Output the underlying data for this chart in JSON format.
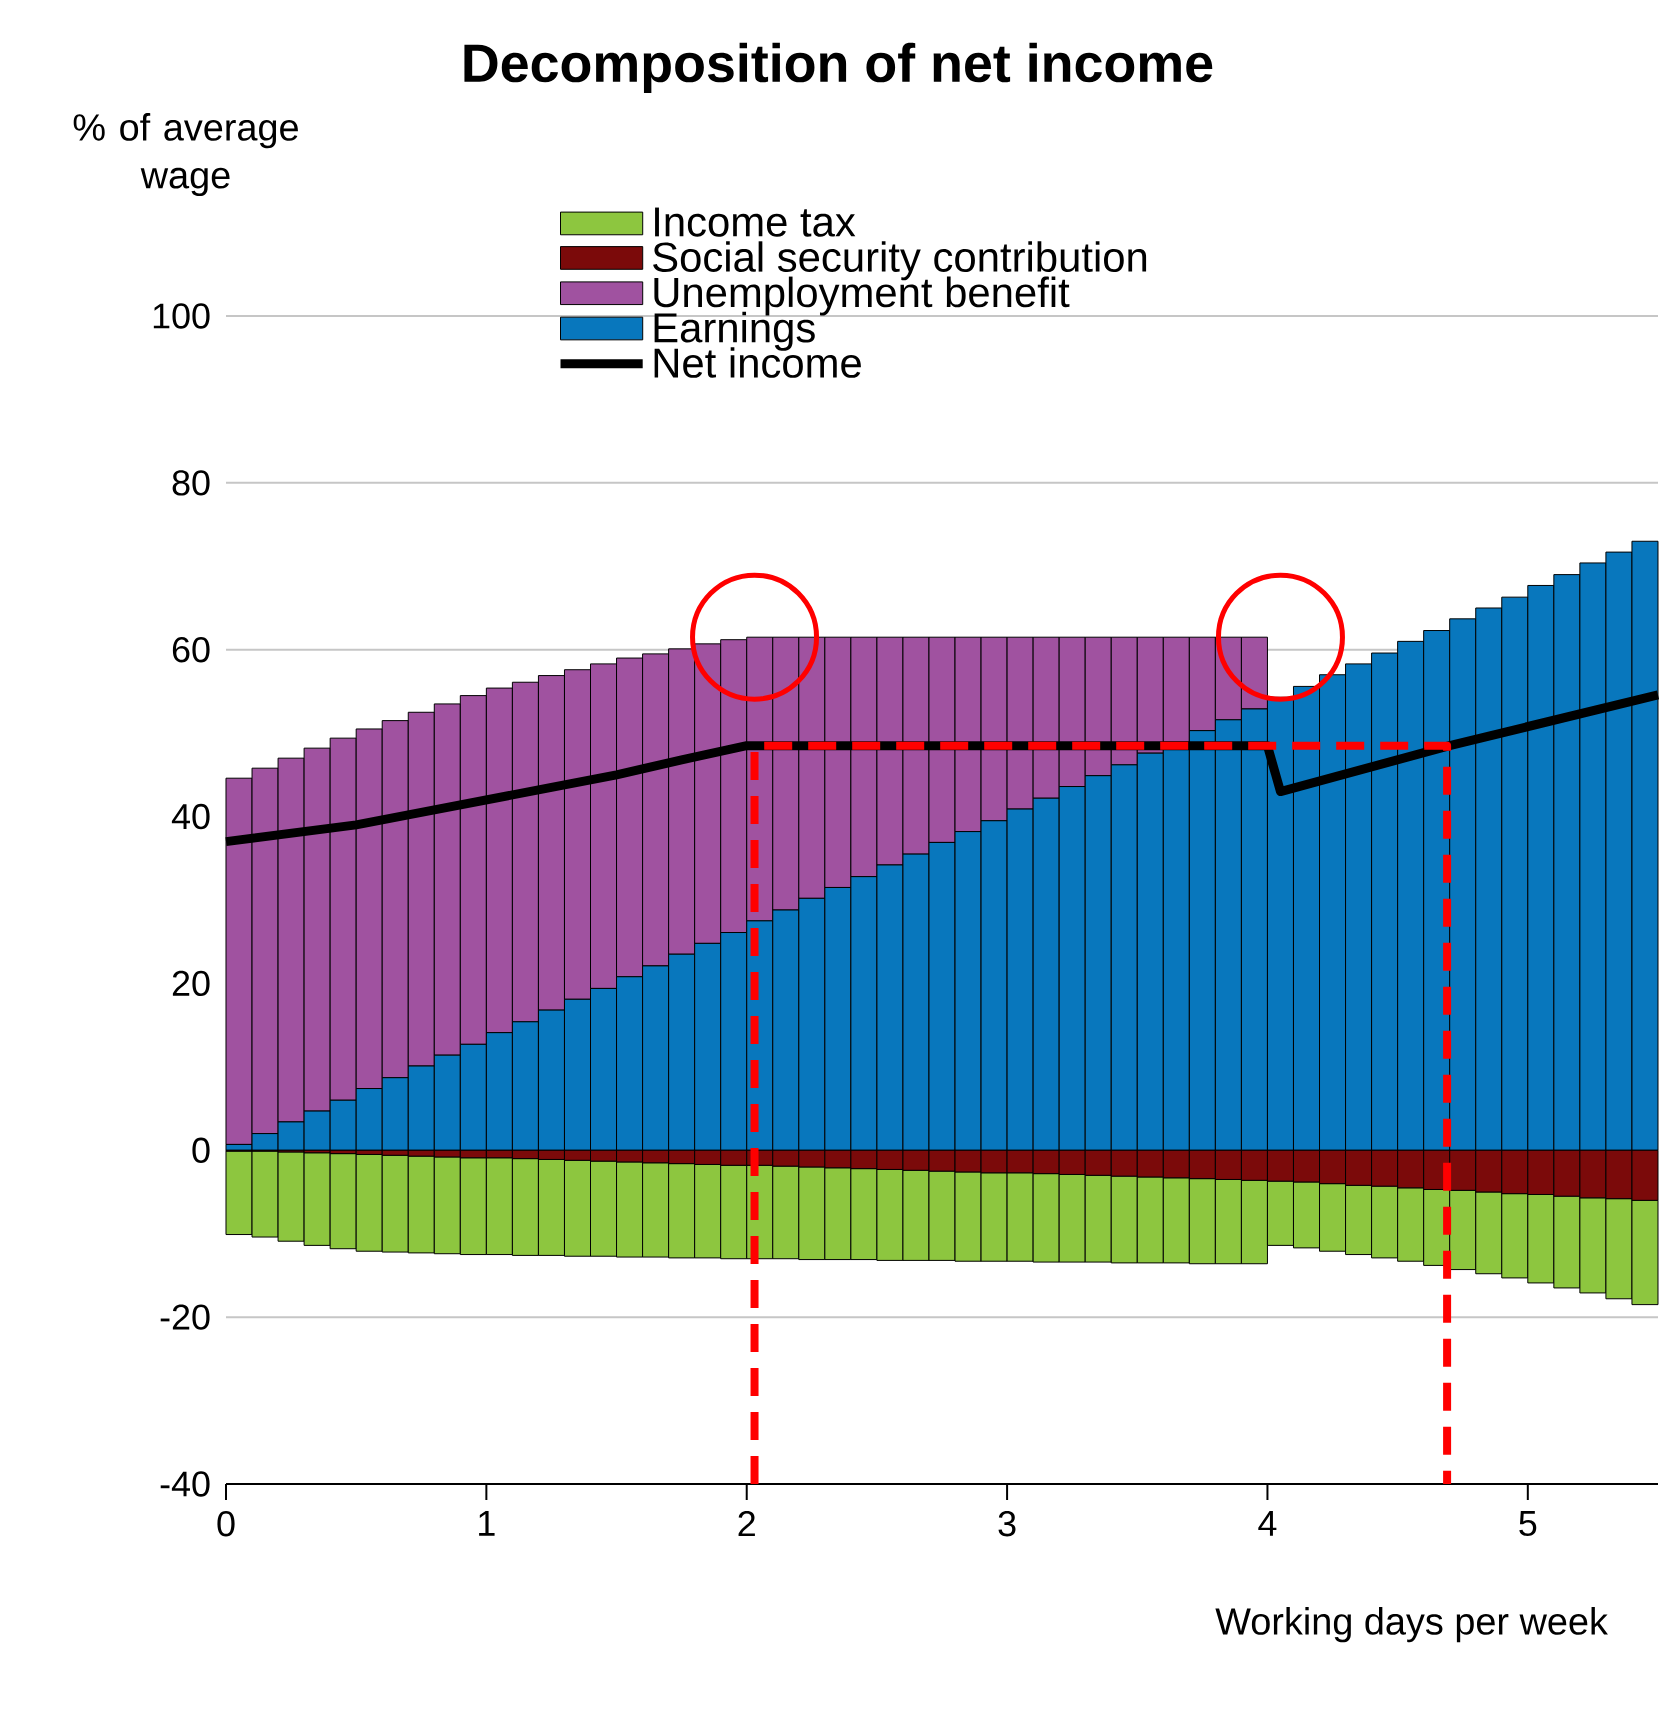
{
  "chart_data": {
    "type": "bar",
    "title": "Decomposition of net income",
    "xlabel": "Working days per week",
    "ylabel": "% of average wage",
    "stacked": true,
    "x": [
      0.05,
      0.15,
      0.25,
      0.35,
      0.45,
      0.55,
      0.65,
      0.75,
      0.85,
      0.95,
      1.05,
      1.15,
      1.25,
      1.35,
      1.45,
      1.55,
      1.65,
      1.75,
      1.85,
      1.95,
      2.05,
      2.15,
      2.25,
      2.35,
      2.45,
      2.55,
      2.65,
      2.75,
      2.85,
      2.95,
      3.05,
      3.15,
      3.25,
      3.35,
      3.45,
      3.55,
      3.65,
      3.75,
      3.85,
      3.95,
      4.05,
      4.15,
      4.25,
      4.35,
      4.45,
      4.55,
      4.65,
      4.75,
      4.85,
      4.95,
      5.05,
      5.15,
      5.25,
      5.35,
      5.45
    ],
    "series": [
      {
        "name": "Earnings",
        "color": "#0877bd",
        "values": [
          0.7,
          2.0,
          3.4,
          4.7,
          6.0,
          7.4,
          8.7,
          10.1,
          11.4,
          12.7,
          14.1,
          15.4,
          16.8,
          18.1,
          19.4,
          20.8,
          22.1,
          23.5,
          24.8,
          26.1,
          27.5,
          28.8,
          30.2,
          31.5,
          32.8,
          34.2,
          35.5,
          36.9,
          38.2,
          39.5,
          40.9,
          42.2,
          43.6,
          44.9,
          46.2,
          47.6,
          48.9,
          50.3,
          51.6,
          52.9,
          54.3,
          55.6,
          57.0,
          58.3,
          59.6,
          61.0,
          62.3,
          63.7,
          65.0,
          66.3,
          67.7,
          69.0,
          70.4,
          71.7,
          73.0
        ]
      },
      {
        "name": "Unemployment benefit",
        "color": "#a052a0",
        "values": [
          43.9,
          43.8,
          43.6,
          43.5,
          43.4,
          43.1,
          42.8,
          42.4,
          42.1,
          41.8,
          41.3,
          40.7,
          40.1,
          39.5,
          38.9,
          38.2,
          37.4,
          36.6,
          35.9,
          35.1,
          34.0,
          32.7,
          31.3,
          30.0,
          28.7,
          27.3,
          26.0,
          24.6,
          23.3,
          22.0,
          20.6,
          19.3,
          17.9,
          16.6,
          15.3,
          13.9,
          12.6,
          11.2,
          9.9,
          8.6,
          0,
          0,
          0,
          0,
          0,
          0,
          0,
          0,
          0,
          0,
          0,
          0,
          0,
          0,
          0
        ]
      },
      {
        "name": "Social security contribution",
        "color": "#7b0a0a",
        "values": [
          -0.1,
          -0.1,
          -0.2,
          -0.3,
          -0.4,
          -0.5,
          -0.6,
          -0.7,
          -0.8,
          -0.9,
          -0.9,
          -1.0,
          -1.1,
          -1.2,
          -1.3,
          -1.4,
          -1.5,
          -1.6,
          -1.7,
          -1.8,
          -1.8,
          -1.9,
          -2.0,
          -2.1,
          -2.2,
          -2.3,
          -2.4,
          -2.5,
          -2.6,
          -2.7,
          -2.7,
          -2.8,
          -2.9,
          -3.0,
          -3.1,
          -3.2,
          -3.3,
          -3.4,
          -3.5,
          -3.6,
          -3.7,
          -3.8,
          -4.0,
          -4.2,
          -4.3,
          -4.5,
          -4.7,
          -4.8,
          -5.0,
          -5.2,
          -5.3,
          -5.5,
          -5.7,
          -5.8,
          -6.0
        ]
      },
      {
        "name": "Income tax",
        "color": "#8dc63f",
        "values": [
          -10.0,
          -10.3,
          -10.7,
          -11.1,
          -11.4,
          -11.6,
          -11.6,
          -11.6,
          -11.6,
          -11.6,
          -11.6,
          -11.6,
          -11.5,
          -11.5,
          -11.4,
          -11.4,
          -11.3,
          -11.3,
          -11.2,
          -11.2,
          -11.2,
          -11.1,
          -11.1,
          -11.0,
          -10.9,
          -10.9,
          -10.8,
          -10.7,
          -10.7,
          -10.6,
          -10.6,
          -10.6,
          -10.5,
          -10.4,
          -10.4,
          -10.3,
          -10.2,
          -10.2,
          -10.1,
          -10.0,
          -7.7,
          -7.9,
          -8.1,
          -8.3,
          -8.6,
          -8.8,
          -9.1,
          -9.5,
          -9.8,
          -10.1,
          -10.6,
          -11.0,
          -11.4,
          -12.0,
          -12.5
        ]
      },
      {
        "name": "Net income",
        "type": "line",
        "color": "#000000",
        "line_style": "solid",
        "x": [
          0,
          0.25,
          0.5,
          0.75,
          1,
          1.25,
          1.5,
          1.75,
          2,
          4,
          4.05,
          4.7,
          5.5
        ],
        "values": [
          37,
          38,
          39,
          40.5,
          42,
          43.5,
          45,
          46.8,
          48.5,
          48.5,
          43,
          48.5,
          54.6
        ]
      },
      {
        "type": "line",
        "color": "#ff0000",
        "line_style": "dashed",
        "x": [
          2.03,
          2.03,
          4.69,
          4.69
        ],
        "values": [
          -40,
          48.5,
          48.5,
          -40
        ]
      }
    ],
    "xlim": [
      0,
      5.5
    ],
    "ylim": [
      -40,
      100
    ],
    "xticks": [
      0,
      1,
      2,
      3,
      4,
      5
    ],
    "yticks": [
      -40,
      -20,
      0,
      20,
      40,
      60,
      80,
      100
    ],
    "grid": "y",
    "legend": "top left",
    "marker": "none"
  }
}
